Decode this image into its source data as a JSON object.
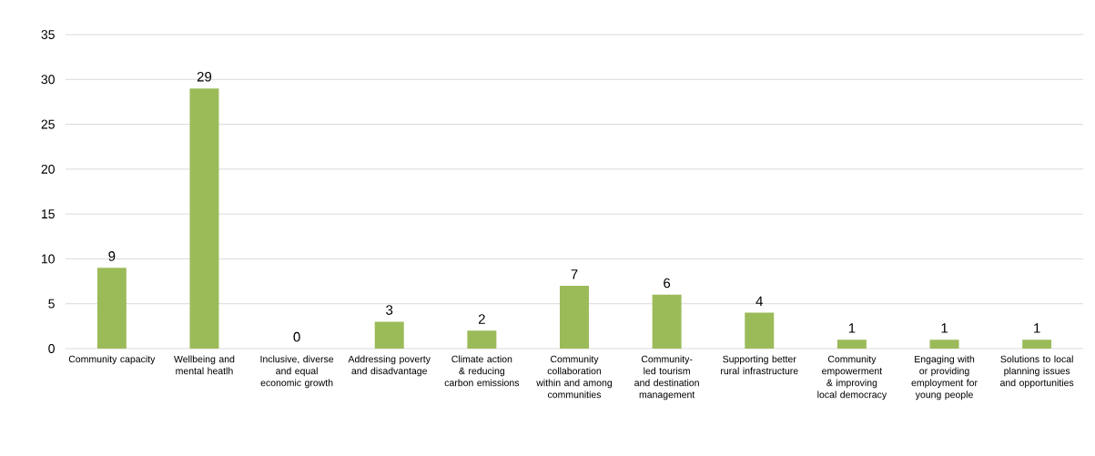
{
  "chart_data": {
    "type": "bar",
    "categories": [
      "Community capacity",
      "Wellbeing and mental heatlh",
      "Inclusive, diverse and equal economic growth",
      "Addressing poverty and disadvantage",
      "Climate action & reducing carbon emissions",
      "Community collaboration within and among communities",
      "Community-led tourism and destination management",
      "Supporting better rural infrastructure",
      "Community empowerment & improving local democracy",
      "Engaging with or providing employment for young people",
      "Solutions to local planning issues and opportunities"
    ],
    "values": [
      9,
      29,
      0,
      3,
      2,
      7,
      6,
      4,
      1,
      1,
      1
    ],
    "color": "#9bbb59",
    "ylim": [
      0,
      35
    ],
    "yticks": [
      0,
      5,
      10,
      15,
      20,
      25,
      30,
      35
    ],
    "grid": "y",
    "data_labels": true
  }
}
